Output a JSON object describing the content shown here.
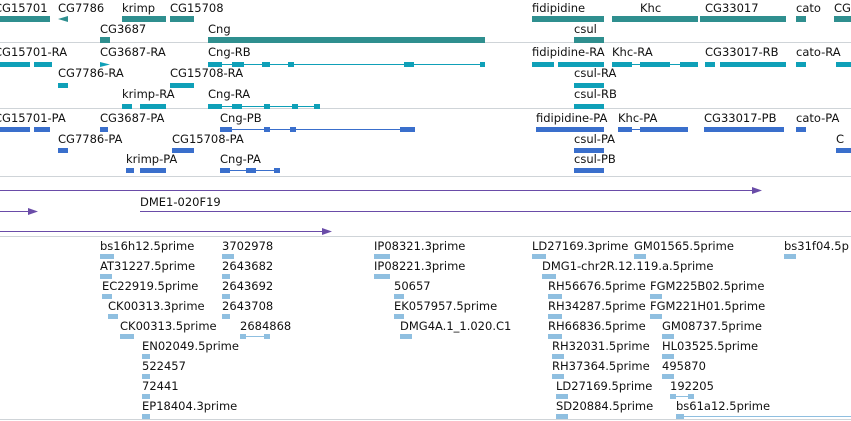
{
  "tracks": {
    "genes": {
      "color": "#2f8f8f",
      "features": [
        {
          "label": "CG15701"
        },
        {
          "label": "CG7786"
        },
        {
          "label": "krimp"
        },
        {
          "label": "CG15708"
        },
        {
          "label": "CG3687"
        },
        {
          "label": "Cng"
        },
        {
          "label": "fidipidine"
        },
        {
          "label": "Khc"
        },
        {
          "label": "CG33017"
        },
        {
          "label": "cato"
        },
        {
          "label": "CG"
        },
        {
          "label": "csul"
        }
      ]
    },
    "transcripts": {
      "color": "#0fa0b8",
      "features": [
        {
          "label": "CG15701-RA"
        },
        {
          "label": "CG3687-RA"
        },
        {
          "label": "Cng-RB"
        },
        {
          "label": "CG7786-RA"
        },
        {
          "label": "CG15708-RA"
        },
        {
          "label": "krimp-RA"
        },
        {
          "label": "Cng-RA"
        },
        {
          "label": "fidipidine-RA"
        },
        {
          "label": "Khc-RA"
        },
        {
          "label": "CG33017-RB"
        },
        {
          "label": "cato-RA"
        },
        {
          "label": "csul-RA"
        },
        {
          "label": "csul-RB"
        }
      ]
    },
    "proteins": {
      "color": "#3a6fcc",
      "features": [
        {
          "label": "CG15701-PA"
        },
        {
          "label": "CG3687-PA"
        },
        {
          "label": "Cng-PB"
        },
        {
          "label": "CG7786-PA"
        },
        {
          "label": "CG15708-PA"
        },
        {
          "label": "krimp-PA"
        },
        {
          "label": "Cng-PA"
        },
        {
          "label": "fidipidine-PA"
        },
        {
          "label": "Khc-PA"
        },
        {
          "label": "CG33017-PB"
        },
        {
          "label": "cato-PA"
        },
        {
          "label": "C"
        },
        {
          "label": "csul-PA"
        },
        {
          "label": "csul-PB"
        }
      ]
    },
    "clones": {
      "color": "#6a4ca8",
      "features": [
        {
          "label": "DME1-020F19"
        }
      ]
    },
    "ests": {
      "color": "#8fbfe0",
      "features": [
        {
          "label": "bs16h12.5prime"
        },
        {
          "label": "3702978"
        },
        {
          "label": "AT31227.5prime"
        },
        {
          "label": "2643682"
        },
        {
          "label": "EC22919.5prime"
        },
        {
          "label": "2643692"
        },
        {
          "label": "CK00313.3prime"
        },
        {
          "label": "2643708"
        },
        {
          "label": "CK00313.5prime"
        },
        {
          "label": "2684868"
        },
        {
          "label": "EN02049.5prime"
        },
        {
          "label": "522457"
        },
        {
          "label": "72441"
        },
        {
          "label": "EP18404.3prime"
        },
        {
          "label": "IP08321.3prime"
        },
        {
          "label": "IP08221.3prime"
        },
        {
          "label": "50657"
        },
        {
          "label": "EK057957.5prime"
        },
        {
          "label": "DMG4A.1_1.020.C1"
        },
        {
          "label": "LD27169.3prime"
        },
        {
          "label": "GM01565.5prime"
        },
        {
          "label": "DMG1-chr2R.12.119.a.5prime"
        },
        {
          "label": "RH56676.5prime"
        },
        {
          "label": "RH34287.5prime"
        },
        {
          "label": "FGM225B02.5prime"
        },
        {
          "label": "FGM221H01.5prime"
        },
        {
          "label": "RH66836.5prime"
        },
        {
          "label": "GM08737.5prime"
        },
        {
          "label": "RH32031.5prime"
        },
        {
          "label": "HL03525.5prime"
        },
        {
          "label": "RH37364.5prime"
        },
        {
          "label": "495870"
        },
        {
          "label": "LD27169.5prime"
        },
        {
          "label": "192205"
        },
        {
          "label": "SD20884.5prime"
        },
        {
          "label": "bs61a12.5prime"
        },
        {
          "label": "bs31f04.5p"
        }
      ]
    }
  }
}
